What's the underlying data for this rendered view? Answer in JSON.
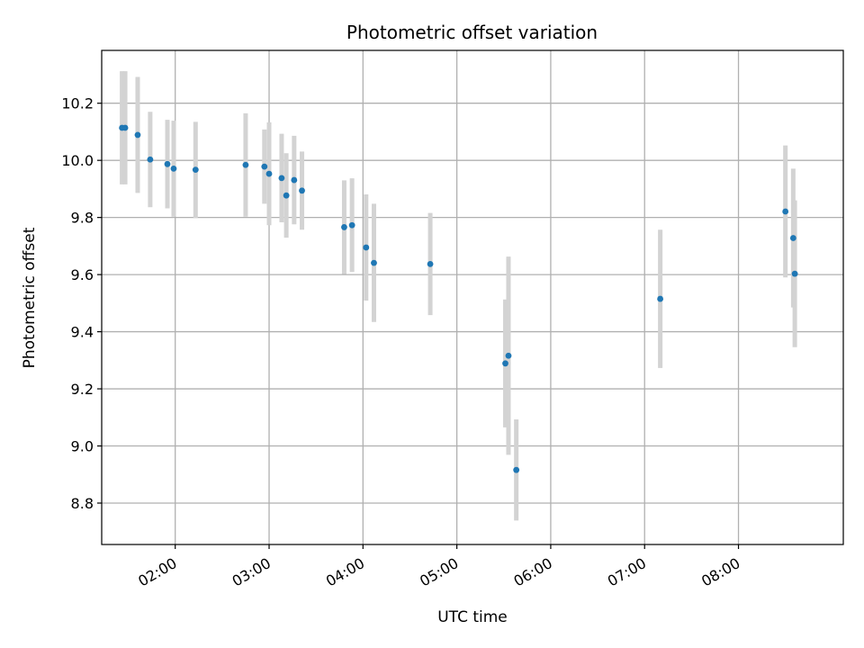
{
  "chart_data": {
    "type": "scatter",
    "title": "Photometric offset variation",
    "xlabel": "UTC time",
    "ylabel": "Photometric offset",
    "grid": true,
    "xlim": [
      "01:13",
      "09:07"
    ],
    "ylim": [
      8.655,
      10.385
    ],
    "x_ticks": [
      "02:00",
      "03:00",
      "04:00",
      "05:00",
      "06:00",
      "07:00",
      "08:00"
    ],
    "y_ticks": [
      8.8,
      9.0,
      9.2,
      9.4,
      9.6,
      9.8,
      10.0,
      10.2
    ],
    "colors": {
      "marker": "#1f77b4",
      "errorbar": "#d3d3d3",
      "grid": "#b0b0b0"
    },
    "points": [
      {
        "x": "01:26",
        "y": 10.114,
        "err": 0.198
      },
      {
        "x": "01:28",
        "y": 10.114,
        "err": 0.198
      },
      {
        "x": "01:36",
        "y": 10.089,
        "err": 0.203
      },
      {
        "x": "01:44",
        "y": 10.003,
        "err": 0.167
      },
      {
        "x": "01:55",
        "y": 9.987,
        "err": 0.155
      },
      {
        "x": "01:59",
        "y": 9.971,
        "err": 0.168
      },
      {
        "x": "02:13",
        "y": 9.967,
        "err": 0.168
      },
      {
        "x": "02:45",
        "y": 9.984,
        "err": 0.181
      },
      {
        "x": "02:57",
        "y": 9.978,
        "err": 0.13
      },
      {
        "x": "03:00",
        "y": 9.953,
        "err": 0.18
      },
      {
        "x": "03:08",
        "y": 9.938,
        "err": 0.155
      },
      {
        "x": "03:11",
        "y": 9.877,
        "err": 0.148
      },
      {
        "x": "03:16",
        "y": 9.931,
        "err": 0.155
      },
      {
        "x": "03:21",
        "y": 9.894,
        "err": 0.137
      },
      {
        "x": "03:48",
        "y": 9.766,
        "err": 0.164
      },
      {
        "x": "03:53",
        "y": 9.773,
        "err": 0.164
      },
      {
        "x": "04:02",
        "y": 9.695,
        "err": 0.186
      },
      {
        "x": "04:07",
        "y": 9.641,
        "err": 0.207
      },
      {
        "x": "04:43",
        "y": 9.637,
        "err": 0.179
      },
      {
        "x": "05:31",
        "y": 9.289,
        "err": 0.224
      },
      {
        "x": "05:33",
        "y": 9.316,
        "err": 0.347
      },
      {
        "x": "05:38",
        "y": 8.916,
        "err": 0.177
      },
      {
        "x": "07:10",
        "y": 9.515,
        "err": 0.242
      },
      {
        "x": "08:30",
        "y": 9.821,
        "err": 0.231
      },
      {
        "x": "08:35",
        "y": 9.728,
        "err": 0.243
      },
      {
        "x": "08:36",
        "y": 9.603,
        "err": 0.257
      }
    ]
  }
}
